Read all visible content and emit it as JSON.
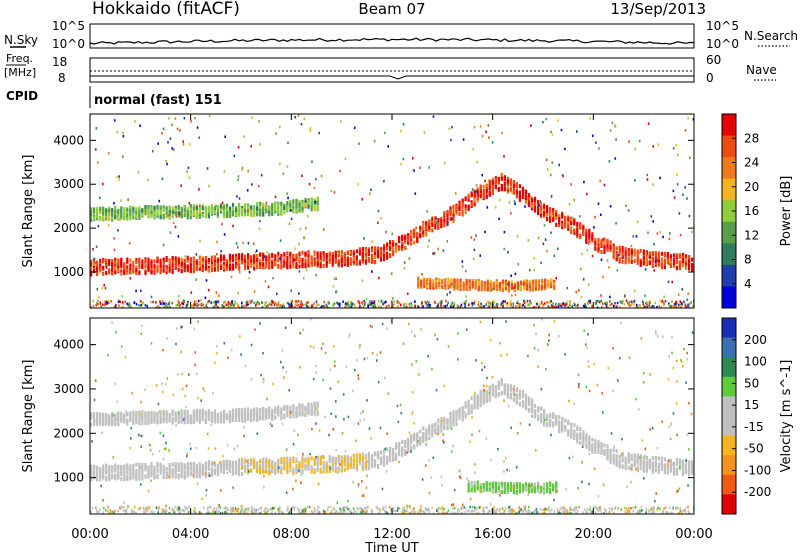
{
  "header": {
    "station": "Hokkaido (fitACF)",
    "beam": "Beam 07",
    "date": "13/Sep/2013"
  },
  "top_panels": {
    "nsky": {
      "label": "N.Sky",
      "ticks": [
        "10^5",
        "10^0"
      ],
      "right_ticks": [
        "10^5",
        "10^0"
      ],
      "right_label": "N.Search"
    },
    "freq": {
      "label_line1": "Freq.",
      "label_line2": "[MHz]",
      "ticks": [
        "18",
        "8"
      ],
      "right_ticks": [
        "60",
        "0"
      ],
      "right_label": "Nave"
    },
    "cpid": {
      "label": "CPID",
      "text": "normal (fast) 151"
    }
  },
  "colors": {
    "power": [
      "#0000dd",
      "#1f3fa8",
      "#2e7d5b",
      "#57a049",
      "#8fce3a",
      "#f2b51f",
      "#f07a1a",
      "#f04a14",
      "#e60000"
    ],
    "velocity": [
      "#e00000",
      "#f05a14",
      "#f4941c",
      "#f4b51f",
      "#c0c0c0",
      "#c0c0c0",
      "#5fcb3a",
      "#2e8a52",
      "#3a6fb0",
      "#1830b8"
    ]
  },
  "chart_data": [
    {
      "type": "heatmap",
      "title": "Power",
      "xlabel": "",
      "ylabel": "Slant Range [km]",
      "x_ticks": [
        "00:00",
        "04:00",
        "08:00",
        "12:00",
        "16:00",
        "20:00",
        "00:00"
      ],
      "xlim": [
        0,
        24
      ],
      "y_ticks": [
        "1000",
        "2000",
        "3000",
        "4000"
      ],
      "ylim": [
        180,
        4600
      ],
      "colorbar": {
        "label": "Power [dB]",
        "ticks": [
          "28",
          "24",
          "20",
          "16",
          "12",
          "8",
          "4"
        ],
        "range": [
          0,
          32
        ]
      },
      "bands": [
        {
          "name": "main",
          "points": [
            [
              0,
              1150
            ],
            [
              2,
              1180
            ],
            [
              4,
              1220
            ],
            [
              6,
              1280
            ],
            [
              8,
              1320
            ],
            [
              10,
              1360
            ],
            [
              11.5,
              1450
            ],
            [
              12.5,
              1750
            ],
            [
              13.5,
              2100
            ],
            [
              14.5,
              2400
            ],
            [
              15.5,
              2850
            ],
            [
              16.3,
              3100
            ],
            [
              17.2,
              2800
            ],
            [
              18,
              2400
            ],
            [
              19,
              2150
            ],
            [
              20,
              1750
            ],
            [
              21,
              1450
            ],
            [
              22,
              1350
            ],
            [
              24,
              1250
            ]
          ],
          "value": 28
        },
        {
          "name": "upper",
          "points": [
            [
              0,
              2350
            ],
            [
              2,
              2400
            ],
            [
              4,
              2420
            ],
            [
              6,
              2450
            ],
            [
              7.5,
              2500
            ],
            [
              9,
              2600
            ]
          ],
          "value": 14
        },
        {
          "name": "lower-echo",
          "points": [
            [
              13,
              800
            ],
            [
              15,
              750
            ],
            [
              17,
              720
            ],
            [
              18.5,
              780
            ]
          ],
          "value": 24
        }
      ]
    },
    {
      "type": "heatmap",
      "title": "Velocity",
      "xlabel": "Time UT",
      "ylabel": "Slant Range [km]",
      "x_ticks": [
        "00:00",
        "04:00",
        "08:00",
        "12:00",
        "16:00",
        "20:00",
        "00:00"
      ],
      "xlim": [
        0,
        24
      ],
      "y_ticks": [
        "1000",
        "2000",
        "3000",
        "4000"
      ],
      "ylim": [
        180,
        4600
      ],
      "colorbar": {
        "label": "Velocity [m s^-1]",
        "ticks": [
          "200",
          "100",
          "50",
          "15",
          "-15",
          "-50",
          "-100",
          "-200"
        ],
        "range": [
          -250,
          250
        ]
      },
      "bands": [
        {
          "name": "main",
          "points": [
            [
              0,
              1150
            ],
            [
              2,
              1180
            ],
            [
              4,
              1220
            ],
            [
              6,
              1280
            ],
            [
              8,
              1320
            ],
            [
              10,
              1360
            ],
            [
              11.5,
              1450
            ],
            [
              12.5,
              1750
            ],
            [
              13.5,
              2100
            ],
            [
              14.5,
              2400
            ],
            [
              15.5,
              2850
            ],
            [
              16.3,
              3100
            ],
            [
              17.2,
              2800
            ],
            [
              18,
              2400
            ],
            [
              19,
              2150
            ],
            [
              20,
              1750
            ],
            [
              21,
              1450
            ],
            [
              22,
              1350
            ],
            [
              24,
              1250
            ]
          ],
          "value": 0
        },
        {
          "name": "upper",
          "points": [
            [
              0,
              2350
            ],
            [
              2,
              2400
            ],
            [
              4,
              2420
            ],
            [
              6,
              2450
            ],
            [
              7.5,
              2500
            ],
            [
              9,
              2600
            ]
          ],
          "value": 0
        },
        {
          "name": "lower-echo",
          "points": [
            [
              15,
              850
            ],
            [
              17,
              800
            ],
            [
              18.5,
              820
            ]
          ],
          "value": 60
        }
      ]
    }
  ]
}
